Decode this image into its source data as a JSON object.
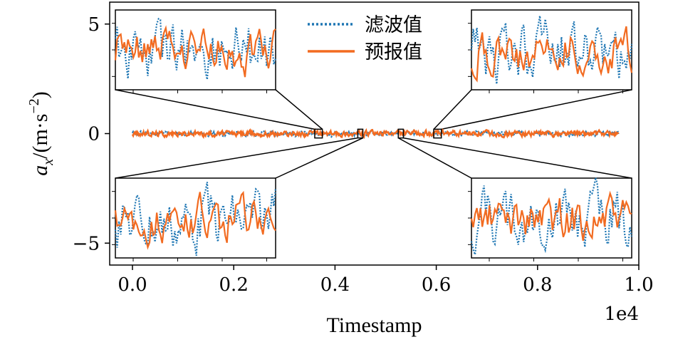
{
  "chart_data": {
    "type": "line",
    "xlabel": "Timestamp",
    "ylabel_parts": [
      "a",
      "x",
      "/(m·s",
      "−2",
      ")"
    ],
    "x_offset_label": "1e4",
    "xlim": [
      -0.045,
      1.0
    ],
    "ylim": [
      -6,
      6
    ],
    "xticks": [
      {
        "value": 0.0,
        "label": "0.0"
      },
      {
        "value": 0.2,
        "label": "0.2"
      },
      {
        "value": 0.4,
        "label": "0.4"
      },
      {
        "value": 0.6,
        "label": "0.6"
      },
      {
        "value": 0.8,
        "label": "0.8"
      },
      {
        "value": 1.0,
        "label": "1.0"
      }
    ],
    "yticks": [
      {
        "value": 5,
        "label": "5"
      },
      {
        "value": 0,
        "label": "0"
      },
      {
        "value": -5,
        "label": "−5"
      }
    ],
    "series": [
      {
        "name": "滤波值",
        "color": "#1f77b4",
        "style": "dotted",
        "x_range": [
          0.0,
          0.96
        ],
        "mean": 0.0,
        "amplitude": 0.08
      },
      {
        "name": "预报值",
        "color": "#f26b21",
        "style": "solid",
        "x_range": [
          0.0,
          0.96
        ],
        "mean": 0.0,
        "amplitude": 0.1
      }
    ],
    "legend": {
      "placement": "top-center"
    },
    "insets": [
      {
        "name": "inset-top-left",
        "zoom_x": [
          0.36,
          0.375
        ],
        "zoom_y": [
          -0.2,
          0.2
        ]
      },
      {
        "name": "inset-top-right",
        "zoom_x": [
          0.595,
          0.61
        ],
        "zoom_y": [
          -0.2,
          0.2
        ]
      },
      {
        "name": "inset-bottom-left",
        "zoom_x": [
          0.445,
          0.455
        ],
        "zoom_y": [
          -0.2,
          0.2
        ]
      },
      {
        "name": "inset-bottom-right",
        "zoom_x": [
          0.525,
          0.535
        ],
        "zoom_y": [
          -0.2,
          0.2
        ]
      }
    ]
  }
}
